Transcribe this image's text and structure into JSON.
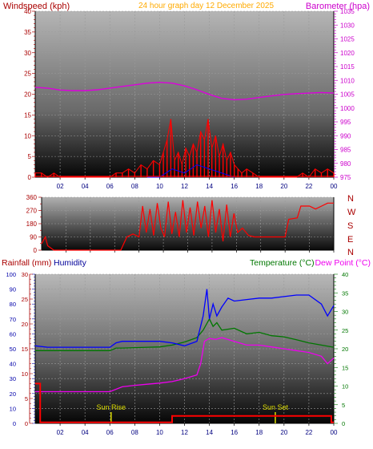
{
  "header": {
    "windspeed_label": "Windspeed (kph)",
    "title": "24 hour graph day   12 December 2025",
    "barometer_label": "Barometer (hpa)"
  },
  "colors": {
    "wind": "#ff0000",
    "gust": "#0000ff",
    "gust2": "#00aa00",
    "barometer": "#dd00dd",
    "humidity": "#0000ff",
    "temperature": "#007700",
    "dewpoint": "#ee00ee",
    "rain": "#ff0000",
    "sun": "#dddd00",
    "left_axis": "#aa0000",
    "right_axis": "#cc00cc",
    "title": "#ffaa00"
  },
  "x_ticks": [
    "02",
    "04",
    "06",
    "08",
    "10",
    "12",
    "14",
    "16",
    "18",
    "20",
    "22",
    "00"
  ],
  "direction_labels": [
    "N",
    "W",
    "S",
    "E",
    "N"
  ],
  "lower_header": {
    "rainfall_label": "Rainfall (mm)",
    "humidity_label": "Humidity",
    "temperature_label": "Temperature (°C)",
    "dewpoint_label": "Dew Point (°C)"
  },
  "annotations": {
    "sunrise": "Sun Rise",
    "sunset": "Sun Set"
  },
  "chart_data": [
    {
      "type": "line",
      "title": "24 hour graph day   12 December 2025",
      "xlabel": "",
      "ylabel": "Windspeed (kph)",
      "y2label": "Barometer (hpa)",
      "xlim": [
        0,
        24
      ],
      "ylim": [
        0,
        40
      ],
      "y2lim": [
        975,
        1035
      ],
      "yticks": [
        0,
        5,
        10,
        15,
        20,
        25,
        30,
        35,
        40
      ],
      "y2ticks": [
        975,
        980,
        985,
        990,
        995,
        1000,
        1005,
        1010,
        1015,
        1020,
        1025,
        1030,
        1035
      ],
      "series": [
        {
          "name": "Barometer (hpa)",
          "axis": "right",
          "x": [
            0,
            1,
            2,
            3,
            4,
            5,
            6,
            7,
            8,
            9,
            10,
            11,
            12,
            13,
            14,
            15,
            16,
            17,
            18,
            19,
            20,
            21,
            22,
            23,
            24
          ],
          "values": [
            1007.5,
            1007.2,
            1006.5,
            1006.3,
            1006.3,
            1006.6,
            1007.2,
            1007.8,
            1008.4,
            1009.0,
            1009.3,
            1009.0,
            1008.0,
            1006.6,
            1004.9,
            1003.5,
            1003.0,
            1003.2,
            1003.8,
            1004.4,
            1004.9,
            1005.2,
            1005.4,
            1005.6,
            1005.4
          ]
        },
        {
          "name": "Windspeed (kph)",
          "axis": "left",
          "x": [
            0,
            0.5,
            1,
            1.5,
            2,
            3,
            4,
            5,
            6,
            6.5,
            7,
            7.5,
            8,
            8.5,
            9,
            9.5,
            10,
            10.3,
            10.6,
            10.9,
            11.2,
            11.5,
            11.8,
            12.1,
            12.4,
            12.7,
            13.0,
            13.3,
            13.6,
            13.9,
            14.2,
            14.5,
            14.8,
            15.1,
            15.4,
            15.7,
            16.0,
            16.3,
            16.6,
            17,
            17.5,
            18,
            19,
            20,
            21,
            21.5,
            22,
            22.5,
            23,
            23.5,
            24
          ],
          "values": [
            1,
            1,
            0,
            1,
            0,
            0,
            0,
            0,
            0,
            1,
            1,
            2,
            1,
            3,
            2,
            4,
            3,
            6,
            9,
            14,
            4,
            6,
            3,
            7,
            5,
            8,
            6,
            11,
            9,
            14,
            7,
            10,
            5,
            8,
            4,
            6,
            3,
            2,
            1,
            2,
            1,
            0,
            0,
            0,
            0,
            1,
            0,
            2,
            1,
            2,
            1
          ]
        },
        {
          "name": "Gust",
          "axis": "left",
          "x": [
            9,
            10,
            11,
            12,
            13,
            14,
            15,
            16
          ],
          "values": [
            0,
            0,
            2,
            1,
            3,
            2,
            1,
            0
          ]
        }
      ]
    },
    {
      "type": "line",
      "xlabel": "",
      "ylabel": "",
      "xlim": [
        0,
        24
      ],
      "ylim": [
        0,
        360
      ],
      "yticks": [
        0,
        90,
        180,
        270,
        360
      ],
      "ytick_labels": [
        "0",
        "90",
        "180",
        "270",
        "360"
      ],
      "extra_yticks": [
        45,
        135,
        225,
        315
      ],
      "series": [
        {
          "name": "Wind direction",
          "x": [
            0,
            0.3,
            0.5,
            1.0,
            1.2,
            6.5,
            7,
            7.5,
            8,
            8.3,
            8.6,
            8.9,
            9.2,
            9.5,
            9.8,
            10.1,
            10.4,
            10.7,
            11.0,
            11.3,
            11.6,
            11.9,
            12.2,
            12.5,
            12.8,
            13.1,
            13.4,
            13.7,
            14.0,
            14.3,
            14.6,
            14.9,
            15.2,
            15.5,
            15.8,
            16.1,
            16.5,
            17,
            17.5,
            18,
            19,
            20,
            20.3,
            21,
            21.3,
            22,
            22.5,
            23,
            23.5,
            24
          ],
          "values": [
            45,
            90,
            30,
            0,
            0,
            0,
            90,
            110,
            90,
            300,
            120,
            280,
            100,
            320,
            150,
            90,
            330,
            110,
            260,
            90,
            340,
            120,
            290,
            100,
            330,
            150,
            300,
            90,
            340,
            120,
            280,
            60,
            310,
            90,
            250,
            120,
            150,
            100,
            90,
            90,
            90,
            90,
            210,
            220,
            300,
            300,
            280,
            300,
            320,
            320
          ]
        }
      ]
    },
    {
      "type": "line",
      "xlabel": "",
      "ylabel": "Rainfall (mm)",
      "y2label": "Temperature (°C)",
      "xlim": [
        0,
        24
      ],
      "ylim_humidity": [
        0,
        100
      ],
      "ylim_rain": [
        0,
        30
      ],
      "ylim_temp": [
        0,
        40
      ],
      "humidity_ticks": [
        0,
        10,
        20,
        30,
        40,
        50,
        60,
        70,
        80,
        90,
        100
      ],
      "rain_ticks": [
        0,
        5,
        10,
        15,
        20,
        25,
        30
      ],
      "temp_ticks": [
        0,
        5,
        10,
        15,
        20,
        25,
        30,
        35,
        40
      ],
      "series": [
        {
          "name": "Humidity",
          "axis": "humidity",
          "x": [
            0,
            1,
            2,
            3,
            4,
            5,
            6,
            6.5,
            7,
            8,
            9,
            10,
            11,
            12,
            13,
            13.5,
            13.8,
            14.0,
            14.3,
            14.6,
            15.0,
            15.5,
            16.0,
            17,
            18,
            19,
            20,
            21,
            22,
            23,
            23.5,
            24
          ],
          "values": [
            52,
            51,
            51,
            51,
            51,
            51,
            51,
            54,
            55,
            55,
            55,
            55,
            54,
            52,
            55,
            72,
            90,
            70,
            80,
            72,
            78,
            84,
            82,
            83,
            84,
            84,
            85,
            86,
            86,
            80,
            72,
            79
          ]
        },
        {
          "name": "Temperature (°C)",
          "axis": "temp",
          "x": [
            0,
            1,
            2,
            3,
            4,
            5,
            6,
            6.5,
            7,
            8,
            9,
            10,
            11,
            12,
            13,
            13.5,
            14.0,
            14.3,
            14.6,
            15,
            16,
            17,
            18,
            19,
            20,
            21,
            22,
            23,
            24
          ],
          "values": [
            19.5,
            19.5,
            19.5,
            19.5,
            19.5,
            19.5,
            19.5,
            20.2,
            20.2,
            20.3,
            20.4,
            20.5,
            21,
            21.8,
            23,
            25,
            28,
            26,
            27,
            25,
            25.5,
            24,
            24.4,
            23.5,
            23.2,
            22.4,
            21.6,
            21,
            20.4
          ]
        },
        {
          "name": "Dew Point (°C)",
          "axis": "temp",
          "x": [
            0,
            1,
            2,
            3,
            4,
            5,
            6,
            7,
            8,
            9,
            10,
            11,
            11.5,
            12,
            13,
            13.3,
            13.6,
            14.0,
            14.5,
            15,
            16,
            17,
            18,
            19,
            20,
            21,
            22,
            23,
            23.5,
            24
          ],
          "values": [
            8.5,
            8.5,
            8.5,
            8.5,
            8.5,
            8.5,
            8.5,
            9.8,
            10.2,
            10.5,
            10.8,
            11.2,
            11.6,
            12,
            13,
            16,
            22,
            22.8,
            22.5,
            23,
            22,
            21,
            21,
            20.5,
            20,
            19.5,
            19,
            18,
            16,
            17.5
          ]
        },
        {
          "name": "Rainfall (mm)",
          "axis": "rain",
          "x": [
            0,
            0.4,
            0.4,
            11,
            11,
            23.8,
            23.8,
            24
          ],
          "values": [
            8,
            8,
            0.2,
            0.2,
            1.5,
            1.5,
            0.2,
            0.2
          ]
        }
      ],
      "sun_rise_hour": 6.1,
      "sun_set_hour": 19.3
    }
  ]
}
